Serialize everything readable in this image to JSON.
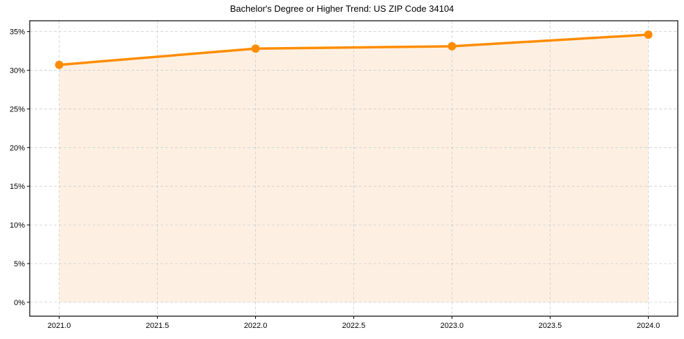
{
  "chart_data": {
    "type": "line",
    "title": "Bachelor's Degree or Higher Trend: US ZIP Code 34104",
    "xlabel": "",
    "ylabel": "",
    "x": [
      2021,
      2022,
      2023,
      2024
    ],
    "series": [
      {
        "name": "Bachelor's Degree or Higher",
        "values": [
          30.7,
          32.8,
          33.1,
          34.6
        ],
        "unit": "%"
      }
    ],
    "xticks": [
      "2021.0",
      "2021.5",
      "2022.0",
      "2022.5",
      "2023.0",
      "2023.5",
      "2024.0"
    ],
    "yticks": [
      "0%",
      "5%",
      "10%",
      "15%",
      "20%",
      "25%",
      "30%",
      "35%"
    ],
    "xlim": [
      2020.85,
      2024.15
    ],
    "ylim": [
      -1.8,
      36.4
    ],
    "grid": true,
    "fill_under_line": true,
    "colors": {
      "line": "#ff8c00",
      "fill": "#fdf0e3",
      "grid": "#cccccc"
    }
  }
}
